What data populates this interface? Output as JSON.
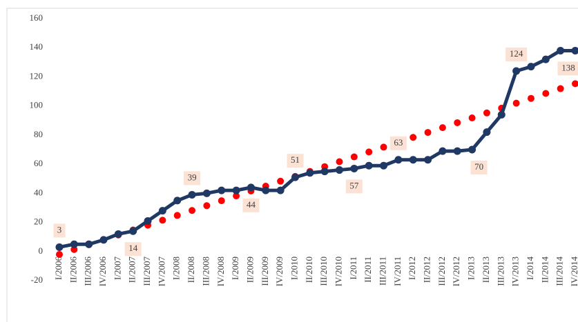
{
  "chart_data": {
    "type": "line",
    "categories": [
      "I/2006",
      "II/2006",
      "III/2006",
      "IV/2006",
      "I/2007",
      "II/2007",
      "III/2007",
      "IV/2007",
      "I/2008",
      "II/2008",
      "III/2008",
      "IV/2008",
      "I/2009",
      "II/2009",
      "III/2009",
      "IV/2009",
      "I/2010",
      "II/2010",
      "III/2010",
      "IV/2010",
      "I/2011",
      "II/2011",
      "III/2011",
      "IV/2011",
      "I/2012",
      "II/2012",
      "III/2012",
      "IV/2012",
      "I/2013",
      "II/2013",
      "III/2013",
      "IV/2013",
      "I/2014",
      "II/2014",
      "III/2014",
      "IV/2014"
    ],
    "series": [
      {
        "color": "#1f3864",
        "values": [
          3,
          5,
          5,
          8,
          12,
          14,
          21,
          28,
          35,
          39,
          40,
          42,
          42,
          44,
          42,
          42,
          51,
          54,
          55,
          56,
          57,
          59,
          59,
          63,
          63,
          63,
          69,
          69,
          70,
          82,
          94,
          124,
          127,
          132,
          138,
          138
        ],
        "value_labels": [
          "3",
          null,
          null,
          null,
          null,
          "14",
          null,
          null,
          null,
          "39",
          null,
          null,
          null,
          "44",
          null,
          null,
          "51",
          null,
          null,
          null,
          "57",
          null,
          null,
          "63",
          null,
          null,
          null,
          null,
          "70",
          null,
          null,
          "124",
          null,
          null,
          null,
          "138"
        ]
      },
      {
        "color": "#ff0000",
        "style": "dotted",
        "values": [
          -2,
          1.4,
          4.7,
          8.1,
          11.4,
          14.8,
          18.1,
          21.5,
          24.8,
          28.2,
          31.5,
          34.9,
          38.2,
          41.6,
          44.9,
          48.3,
          51.6,
          55,
          58.3,
          61.7,
          65,
          68.4,
          71.7,
          75.1,
          78.4,
          81.8,
          85.1,
          88.5,
          91.8,
          95.2,
          98.5,
          101.9,
          105.2,
          108.6,
          111.9,
          115.3
        ]
      }
    ],
    "ylim": [
      -20,
      160
    ],
    "yticks": [
      -20,
      0,
      20,
      40,
      60,
      80,
      100,
      120,
      140,
      160
    ]
  }
}
